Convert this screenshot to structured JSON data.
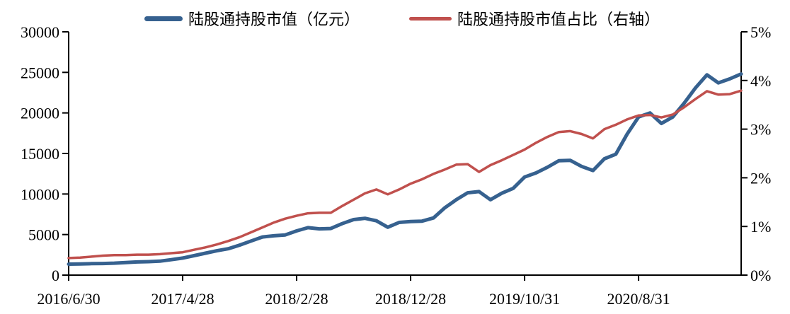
{
  "page": {
    "background": "#FFFFFF",
    "text_color": "#000000"
  },
  "legend": {
    "items": [
      {
        "label": "陆股通持股市值（亿元）",
        "color": "#36618F"
      },
      {
        "label": "陆股通持股市值占比（右轴）",
        "color": "#C0504D"
      }
    ]
  },
  "chart_data": {
    "type": "line",
    "title": "",
    "n_points": 60,
    "x_tick_labels": [
      "2016/6/30",
      "2017/4/28",
      "2018/2/28",
      "2018/12/28",
      "2019/10/31",
      "2020/8/31"
    ],
    "x_tick_indices": [
      0,
      10,
      20,
      30,
      40,
      50
    ],
    "left_axis": {
      "min": 0,
      "max": 30000,
      "step": 5000,
      "tick_labels": [
        "0",
        "5000",
        "10000",
        "15000",
        "20000",
        "25000",
        "30000"
      ]
    },
    "right_axis": {
      "min": 0,
      "max": 5,
      "step": 1,
      "tick_labels": [
        "0%",
        "1%",
        "2%",
        "3%",
        "4%",
        "5%"
      ]
    },
    "axis_color": "#000000",
    "grid": false,
    "legend_position": "top",
    "series": [
      {
        "name": "陆股通持股市值（亿元）",
        "axis": "left",
        "color": "#36618F",
        "line_width": 5,
        "values": [
          1350,
          1380,
          1410,
          1430,
          1470,
          1550,
          1620,
          1660,
          1720,
          1900,
          2100,
          2400,
          2700,
          3000,
          3250,
          3700,
          4200,
          4700,
          4850,
          4950,
          5450,
          5850,
          5700,
          5750,
          6350,
          6850,
          7000,
          6700,
          5900,
          6500,
          6600,
          6650,
          7050,
          8300,
          9300,
          10150,
          10300,
          9300,
          10100,
          10700,
          12100,
          12600,
          13300,
          14100,
          14150,
          13400,
          12900,
          14350,
          14900,
          17400,
          19500,
          20000,
          18700,
          19500,
          21200,
          23100,
          24700,
          23700,
          24200,
          24800
        ]
      },
      {
        "name": "陆股通持股市值占比（右轴）",
        "axis": "right",
        "color": "#C0504D",
        "line_width": 3.5,
        "values": [
          0.35,
          0.36,
          0.38,
          0.4,
          0.41,
          0.41,
          0.42,
          0.42,
          0.43,
          0.45,
          0.47,
          0.52,
          0.57,
          0.63,
          0.7,
          0.78,
          0.88,
          0.98,
          1.08,
          1.16,
          1.22,
          1.27,
          1.28,
          1.28,
          1.42,
          1.55,
          1.68,
          1.76,
          1.66,
          1.76,
          1.88,
          1.97,
          2.08,
          2.17,
          2.27,
          2.28,
          2.12,
          2.26,
          2.36,
          2.47,
          2.58,
          2.72,
          2.84,
          2.94,
          2.96,
          2.9,
          2.81,
          3.0,
          3.09,
          3.2,
          3.28,
          3.29,
          3.24,
          3.3,
          3.45,
          3.62,
          3.78,
          3.71,
          3.72,
          3.79
        ]
      }
    ]
  }
}
